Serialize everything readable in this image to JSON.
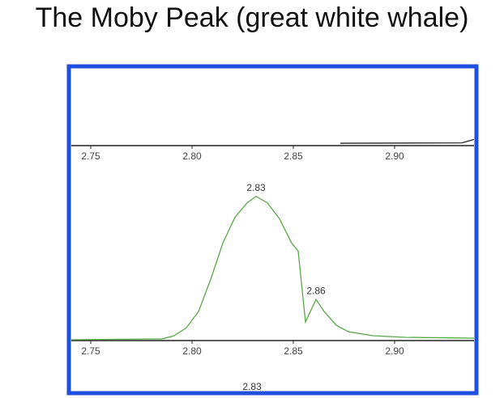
{
  "title": "The Moby Peak (great white whale)",
  "cropped_label": "2.83",
  "chart_data": [
    {
      "type": "line",
      "xlim": [
        2.7404,
        2.9392
      ],
      "ylim": [
        0,
        100
      ],
      "xticks": [
        2.75,
        {
          "value": 2.8,
          "label": "2.80"
        },
        2.85,
        {
          "value": 2.9,
          "label": "2.90"
        }
      ],
      "series": [
        {
          "color": "#222222",
          "x": [
            2.8732,
            2.9332,
            2.9392
          ],
          "values": [
            1,
            1.5,
            6
          ]
        }
      ]
    },
    {
      "type": "line",
      "xlim": [
        2.7404,
        2.9392
      ],
      "ylim": [
        0,
        110
      ],
      "xticks": [
        2.75,
        {
          "value": 2.8,
          "label": "2.80"
        },
        2.85,
        {
          "value": 2.9,
          "label": "2.90"
        }
      ],
      "series": [
        {
          "color": "#5aa84a",
          "x": [
            2.7404,
            2.7852,
            2.7912,
            2.7972,
            2.8032,
            2.8092,
            2.8152,
            2.8212,
            2.8272,
            2.8316,
            2.8372,
            2.8432,
            2.8492,
            2.8524,
            2.856,
            2.8612,
            2.8652,
            2.8712,
            2.8772,
            2.8892,
            2.9052,
            2.9392
          ],
          "values": [
            0,
            0.6,
            2.8,
            8.4,
            19.7,
            42.1,
            67.4,
            85.4,
            95.5,
            100,
            95.5,
            84.3,
            67.4,
            61.8,
            12.4,
            28.1,
            19.7,
            10.1,
            5.6,
            2.8,
            1.7,
            1.1
          ]
        }
      ],
      "annotations": [
        {
          "label": "2.83",
          "x": 2.8316,
          "y": 100
        },
        {
          "label": "2.86",
          "x": 2.8612,
          "y": 28.1
        }
      ]
    }
  ]
}
